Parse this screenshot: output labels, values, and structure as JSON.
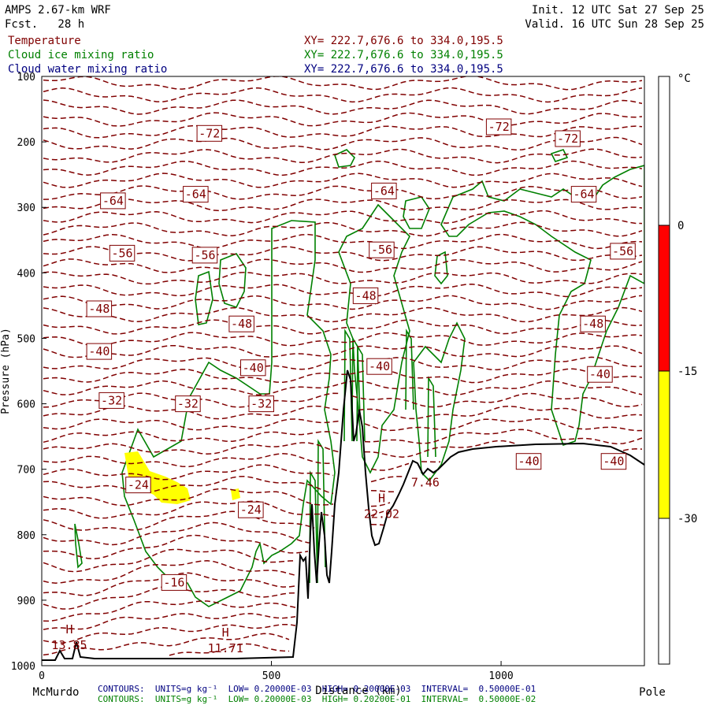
{
  "header": {
    "model": "AMPS 2.67-km WRF",
    "forecast": "Fcst.   28 h",
    "init": "Init. 12 UTC Sat 27 Sep 25",
    "valid": "Valid. 16 UTC Sun 28 Sep 25",
    "fields": [
      {
        "name": "Temperature",
        "xy": "XY= 222.7,676.6 to 334.0,195.5",
        "color": "#800000"
      },
      {
        "name": "Cloud ice mixing ratio",
        "xy": "XY= 222.7,676.6 to 334.0,195.5",
        "color": "#008000"
      },
      {
        "name": "Cloud water mixing ratio",
        "xy": "XY= 222.7,676.6 to 334.0,195.5",
        "color": "#000080"
      }
    ]
  },
  "chart_data": {
    "type": "cross-section",
    "ylabel": "Pressure (hPa)",
    "xlabel": "Distance (km)",
    "ylim": [
      1000,
      100
    ],
    "xlim": [
      0,
      1300
    ],
    "y_ticks": [
      100,
      200,
      300,
      400,
      500,
      600,
      700,
      800,
      900,
      1000
    ],
    "x_ticks": [
      0,
      500,
      1000
    ],
    "x_endpoints": {
      "left": "McMurdo",
      "right": "Pole"
    },
    "temperature_labels": [
      {
        "text": "-72",
        "x": 365,
        "p": 187
      },
      {
        "text": "-72",
        "x": 995,
        "p": 177
      },
      {
        "text": "-72",
        "x": 1145,
        "p": 195
      },
      {
        "text": "-64",
        "x": 155,
        "p": 290
      },
      {
        "text": "-64",
        "x": 335,
        "p": 280
      },
      {
        "text": "-64",
        "x": 745,
        "p": 275
      },
      {
        "text": "-64",
        "x": 1180,
        "p": 280
      },
      {
        "text": "-56",
        "x": 175,
        "p": 370
      },
      {
        "text": "-56",
        "x": 355,
        "p": 373
      },
      {
        "text": "-56",
        "x": 740,
        "p": 365
      },
      {
        "text": "-56",
        "x": 1265,
        "p": 367
      },
      {
        "text": "-48",
        "x": 125,
        "p": 455
      },
      {
        "text": "-48",
        "x": 435,
        "p": 478
      },
      {
        "text": "-48",
        "x": 705,
        "p": 435
      },
      {
        "text": "-48",
        "x": 1200,
        "p": 478
      },
      {
        "text": "-40",
        "x": 125,
        "p": 520
      },
      {
        "text": "-40",
        "x": 460,
        "p": 545
      },
      {
        "text": "-40",
        "x": 735,
        "p": 543
      },
      {
        "text": "-40",
        "x": 1215,
        "p": 555
      },
      {
        "text": "-32",
        "x": 152,
        "p": 595
      },
      {
        "text": "-32",
        "x": 318,
        "p": 600
      },
      {
        "text": "-32",
        "x": 478,
        "p": 600
      },
      {
        "text": "-40",
        "x": 1060,
        "p": 688
      },
      {
        "text": "-40",
        "x": 1245,
        "p": 688
      },
      {
        "text": "-24",
        "x": 210,
        "p": 724
      },
      {
        "text": "-24",
        "x": 455,
        "p": 762
      },
      {
        "text": "-16",
        "x": 288,
        "p": 873
      }
    ],
    "highs": [
      {
        "label": "H",
        "value": "13.85",
        "x": 60,
        "p": 960
      },
      {
        "label": "H",
        "value": "11.71",
        "x": 400,
        "p": 965
      },
      {
        "label": "H",
        "value": "22.02",
        "x": 740,
        "p": 760
      },
      {
        "label": "",
        "value": "7.46",
        "x": 835,
        "p": 712
      }
    ],
    "colorbar": {
      "unit": "°C",
      "ticks": [
        "0",
        "-15",
        "-30"
      ],
      "bands": [
        {
          "from": "top",
          "to": "0",
          "color": "#ffffff"
        },
        {
          "from": "0",
          "to": "-15",
          "color": "#ff0000"
        },
        {
          "from": "-15",
          "to": "-30",
          "color": "#ffff00"
        },
        {
          "from": "-30",
          "to": "bottom",
          "color": "#ffffff"
        }
      ]
    },
    "contour_info": [
      {
        "text": "CONTOURS:  UNITS=g kg⁻¹  LOW= 0.20000E-03  HIGH= 0.20000E-03  INTERVAL=  0.50000E-01",
        "color": "#000080"
      },
      {
        "text": "CONTOURS:  UNITS=g kg⁻¹  LOW= 0.20000E-03  HIGH= 0.20200E-01  INTERVAL=  0.50000E-02",
        "color": "#008000"
      }
    ]
  }
}
